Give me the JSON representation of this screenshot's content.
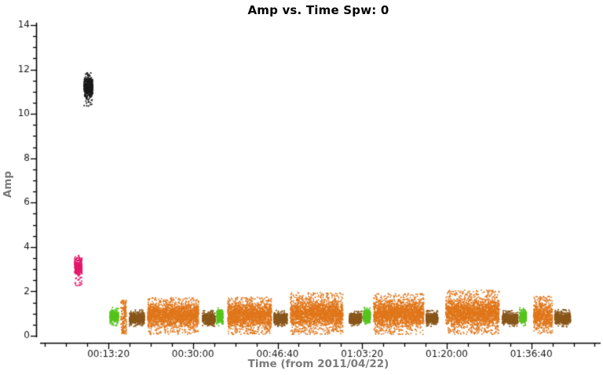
{
  "chart_data": {
    "type": "scatter",
    "title": "Amp vs. Time Spw: 0",
    "xlabel": "Time (from 2011/04/22)",
    "ylabel": "Amp",
    "x_axis": {
      "unit": "time hh:mm:ss since 2011/04/22 00:00:00",
      "tick_labels": [
        "00:13:20",
        "00:30:00",
        "00:46:40",
        "01:03:20",
        "01:20:00",
        "01:36:40"
      ],
      "tick_seconds": [
        800,
        1800,
        2800,
        3800,
        4800,
        5800
      ],
      "minor_tick_interval_seconds": 250,
      "range_seconds": [
        -55,
        6620
      ]
    },
    "y_axis": {
      "ticks": [
        0,
        2,
        4,
        6,
        8,
        10,
        12,
        14
      ],
      "minor_tick_interval": 0.5,
      "range": [
        0,
        14
      ]
    },
    "grid": false,
    "legend": false,
    "colors": {
      "title": "#000000",
      "axis": "#000000",
      "tick_text": "#1a1a1a",
      "axis_labels": "#7b7b7b",
      "background": "#ffffff",
      "series_black": "#1a1a1a",
      "series_magenta": "#e5176d",
      "series_green": "#55c41c",
      "series_orange": "#e0761a",
      "series_brown": "#8a571b"
    },
    "clusters": [
      {
        "name": "cal-scan-magenta",
        "color": "#e5176d",
        "style": "bar",
        "t_range": [
          400,
          487
        ],
        "amp_range": [
          2.25,
          3.62
        ],
        "amp_core": [
          2.7,
          3.55
        ],
        "n": 330
      },
      {
        "name": "cal-scan-black",
        "color": "#1a1a1a",
        "style": "bar",
        "t_range": [
          512,
          615
        ],
        "amp_range": [
          10.35,
          11.85
        ],
        "amp_core": [
          10.75,
          11.65
        ],
        "n": 460
      },
      {
        "name": "scan-green-1",
        "color": "#55c41c",
        "style": "block",
        "t_range": [
          819,
          921
        ],
        "amp_range": [
          0.45,
          1.28
        ],
        "amp_core": [
          0.55,
          1.18
        ],
        "n": 300
      },
      {
        "name": "scan-orange-strip",
        "color": "#e0761a",
        "style": "strip",
        "t_range": [
          948,
          1013
        ],
        "amp_range": [
          0.05,
          1.6
        ],
        "amp_core": [
          0.3,
          1.4
        ],
        "n": 140
      },
      {
        "name": "scan-brown-1",
        "color": "#8a571b",
        "style": "block",
        "t_range": [
          1050,
          1227
        ],
        "amp_range": [
          0.42,
          1.18
        ],
        "amp_core": [
          0.5,
          1.08
        ],
        "n": 520
      },
      {
        "name": "scan-orange-1",
        "color": "#e0761a",
        "style": "cloud",
        "t_range": [
          1264,
          1867
        ],
        "amp_range": [
          0.06,
          1.72
        ],
        "amp_core": [
          0.35,
          1.5
        ],
        "n": 2100
      },
      {
        "name": "scan-brown-2",
        "color": "#8a571b",
        "style": "block",
        "t_range": [
          1913,
          2061
        ],
        "amp_range": [
          0.42,
          1.15
        ],
        "amp_core": [
          0.5,
          1.05
        ],
        "n": 440
      },
      {
        "name": "scan-green-2",
        "color": "#55c41c",
        "style": "block",
        "t_range": [
          2080,
          2154
        ],
        "amp_range": [
          0.45,
          1.28
        ],
        "amp_core": [
          0.55,
          1.18
        ],
        "n": 230
      },
      {
        "name": "scan-orange-2",
        "color": "#e0761a",
        "style": "cloud",
        "t_range": [
          2210,
          2729
        ],
        "amp_range": [
          0.06,
          1.75
        ],
        "amp_core": [
          0.35,
          1.52
        ],
        "n": 1850
      },
      {
        "name": "scan-brown-3",
        "color": "#8a571b",
        "style": "block",
        "t_range": [
          2757,
          2915
        ],
        "amp_range": [
          0.42,
          1.15
        ],
        "amp_core": [
          0.5,
          1.05
        ],
        "n": 460
      },
      {
        "name": "scan-orange-3",
        "color": "#e0761a",
        "style": "cloud",
        "t_range": [
          2952,
          3573
        ],
        "amp_range": [
          0.06,
          1.95
        ],
        "amp_core": [
          0.38,
          1.6
        ],
        "n": 2250
      },
      {
        "name": "scan-brown-4",
        "color": "#8a571b",
        "style": "block",
        "t_range": [
          3648,
          3796
        ],
        "amp_range": [
          0.42,
          1.15
        ],
        "amp_core": [
          0.5,
          1.05
        ],
        "n": 440
      },
      {
        "name": "scan-green-3",
        "color": "#55c41c",
        "style": "block",
        "t_range": [
          3815,
          3898
        ],
        "amp_range": [
          0.45,
          1.28
        ],
        "amp_core": [
          0.55,
          1.18
        ],
        "n": 240
      },
      {
        "name": "scan-orange-4",
        "color": "#e0761a",
        "style": "cloud",
        "t_range": [
          3935,
          4529
        ],
        "amp_range": [
          0.06,
          1.9
        ],
        "amp_core": [
          0.38,
          1.62
        ],
        "n": 2150
      },
      {
        "name": "scan-brown-5",
        "color": "#8a571b",
        "style": "block",
        "t_range": [
          4557,
          4696
        ],
        "amp_range": [
          0.42,
          1.15
        ],
        "amp_core": [
          0.5,
          1.05
        ],
        "n": 420
      },
      {
        "name": "scan-orange-5",
        "color": "#e0761a",
        "style": "cloud",
        "t_range": [
          4789,
          5420
        ],
        "amp_range": [
          0.06,
          2.06
        ],
        "amp_core": [
          0.4,
          1.68
        ],
        "n": 2300
      },
      {
        "name": "scan-brown-6",
        "color": "#8a571b",
        "style": "block",
        "t_range": [
          5457,
          5642
        ],
        "amp_range": [
          0.42,
          1.15
        ],
        "amp_core": [
          0.5,
          1.05
        ],
        "n": 500
      },
      {
        "name": "scan-green-4",
        "color": "#55c41c",
        "style": "block",
        "t_range": [
          5661,
          5744
        ],
        "amp_range": [
          0.45,
          1.3
        ],
        "amp_core": [
          0.55,
          1.18
        ],
        "n": 230
      },
      {
        "name": "scan-orange-6",
        "color": "#e0761a",
        "style": "cloud",
        "t_range": [
          5827,
          6050
        ],
        "amp_range": [
          0.08,
          1.78
        ],
        "amp_core": [
          0.3,
          1.45
        ],
        "n": 720
      },
      {
        "name": "scan-brown-7",
        "color": "#8a571b",
        "style": "block",
        "t_range": [
          6078,
          6263
        ],
        "amp_range": [
          0.4,
          1.2
        ],
        "amp_core": [
          0.5,
          1.08
        ],
        "n": 500
      }
    ]
  }
}
